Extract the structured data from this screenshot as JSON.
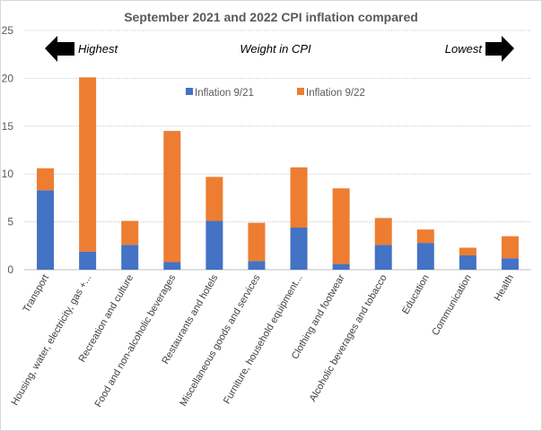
{
  "chart_data": {
    "type": "bar",
    "stacked": true,
    "title": "September 2021 and 2022 CPI inflation compared",
    "xlabel": "",
    "ylabel": "",
    "ylim": [
      0,
      25
    ],
    "yticks": [
      0,
      5,
      10,
      15,
      20,
      25
    ],
    "grid": true,
    "legend_position": "top-center",
    "categories": [
      "Transport",
      "Housing, water, electricity, gas +...",
      "Recreation and culture",
      "Food and non-alcoholic beverages",
      "Restaurants and hotels",
      "Miscellaneous goods and services",
      "Furniture, household equipment...",
      "Clothing and footwear",
      "Alcoholic beverages and tobacco",
      "Education",
      "Communication",
      "Health"
    ],
    "series": [
      {
        "name": "Inflation 9/21",
        "color": "#4472c4",
        "values": [
          8.3,
          1.9,
          2.6,
          0.8,
          5.1,
          0.9,
          4.4,
          0.6,
          2.6,
          2.8,
          1.5,
          1.2
        ]
      },
      {
        "name": "Inflation 9/22",
        "color": "#ed7d31",
        "values": [
          2.3,
          18.2,
          2.5,
          13.7,
          4.6,
          4.0,
          6.3,
          7.9,
          2.8,
          1.4,
          0.8,
          2.3
        ]
      }
    ],
    "annotations": {
      "left": "Highest",
      "center": "Weight in CPI",
      "right": "Lowest",
      "left_icon": "arrow-left-icon",
      "right_icon": "arrow-right-icon"
    }
  }
}
